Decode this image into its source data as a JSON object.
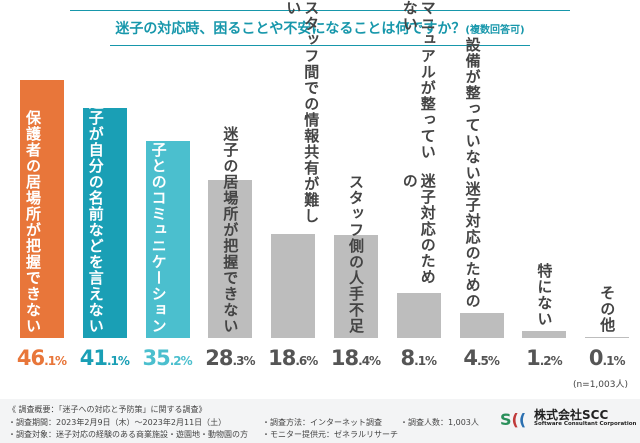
{
  "chart_data": {
    "type": "bar",
    "title": "迷子の対応時、困ることや不安になることは何ですか？",
    "title_note": "(複数回答可)",
    "categories": [
      [
        "保護者の居場所が",
        "把握できない"
      ],
      [
        "迷子が自分の名前などを",
        "言えない"
      ],
      [
        "迷子との",
        "コミュニケーション"
      ],
      [
        "迷子の居場所が把握できない"
      ],
      [
        "スタッフ間での情報共有が難しい"
      ],
      [
        "スタッフ側の人手不足"
      ],
      [
        "マニュアルが整っていない",
        "迷子対応のための"
      ],
      [
        "設備が整っていない",
        "迷子対応のための"
      ],
      [
        "特にない"
      ],
      [
        "その他"
      ]
    ],
    "values": [
      46.1,
      41.1,
      35.2,
      28.3,
      18.6,
      18.4,
      8.1,
      4.5,
      1.2,
      0.1
    ],
    "unit": "%",
    "colors": [
      "#e8763a",
      "#1a9fb5",
      "#4bbfce",
      "#bdbdbd",
      "#bdbdbd",
      "#bdbdbd",
      "#bdbdbd",
      "#bdbdbd",
      "#bdbdbd",
      "#bdbdbd"
    ],
    "value_colors": [
      "#e8763a",
      "#1a9fb5",
      "#4bbfce",
      "#555555",
      "#555555",
      "#555555",
      "#555555",
      "#555555",
      "#555555",
      "#555555"
    ],
    "label_colors": [
      "#ffffff",
      "#ffffff",
      "#ffffff",
      "#444444",
      "#444444",
      "#444444",
      "#444444",
      "#444444",
      "#444444",
      "#444444"
    ],
    "ylim": [
      0,
      46.1
    ],
    "grid": false,
    "sample_note": "(n=1,003人)"
  },
  "footer": {
    "heading": "《 調査概要：「迷子への対応と予防策」に関する調査》",
    "period": "・調査期間：2023年2月9日（木）～2023年2月11日（土）",
    "method": "・調査方法：インターネット調査",
    "count": "・調査人数：1,003人",
    "target": "・調査対象：迷子対応の経験のある商業施設・遊園地・動物園の方",
    "provider": "・モニター提供元：ゼネラルリサーチ"
  },
  "company": {
    "logo": "SCC",
    "name": "株式会社SCC",
    "sub": "Software Consultant Corporation"
  }
}
